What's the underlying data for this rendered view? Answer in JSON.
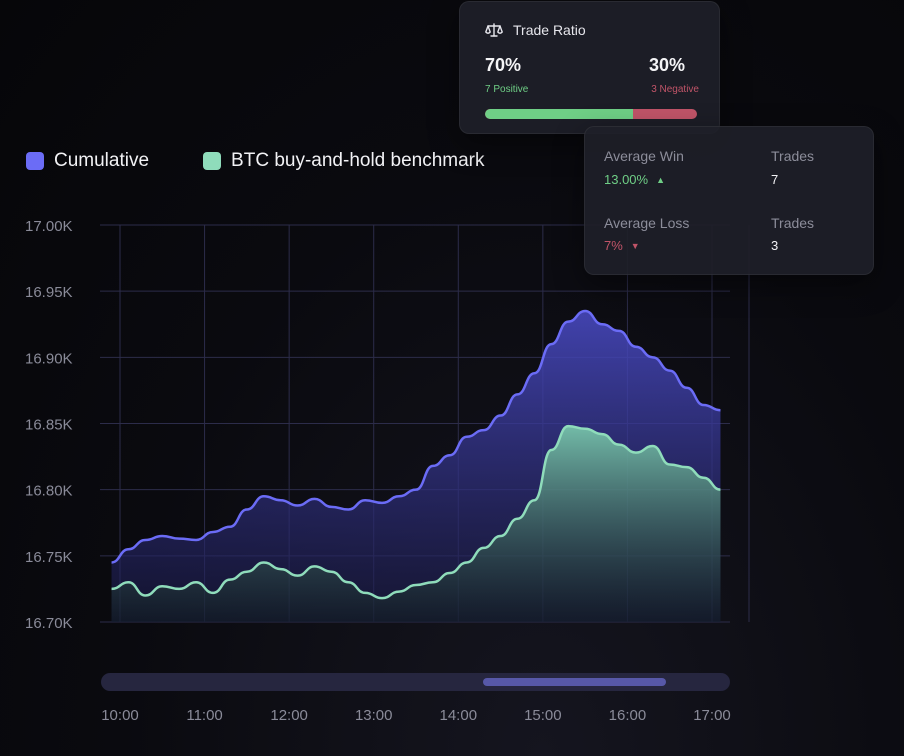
{
  "legend": {
    "cumulative": "Cumulative",
    "benchmark": "BTC buy-and-hold benchmark"
  },
  "trade_ratio": {
    "title": "Trade Ratio",
    "positive_pct": "70%",
    "positive_label": "7 Positive",
    "negative_pct": "30%",
    "negative_label": "3 Negative",
    "positive_fraction": 0.7
  },
  "stats": {
    "avg_win_label": "Average Win",
    "avg_win_value": "13.00%",
    "win_trades_label": "Trades",
    "win_trades_value": "7",
    "avg_loss_label": "Average Loss",
    "avg_loss_value": "7%",
    "loss_trades_label": "Trades",
    "loss_trades_value": "3"
  },
  "colors": {
    "cumulative": "#6b6cf6",
    "benchmark": "#8fdcbb",
    "positive": "#6fcf86",
    "negative": "#c05468"
  },
  "chart_data": {
    "type": "area",
    "ylim": [
      16.7,
      17.0
    ],
    "xlim": [
      10.0,
      17.0
    ],
    "y_ticks": [
      "16.70K",
      "16.75K",
      "16.80K",
      "16.85K",
      "16.90K",
      "16.95K",
      "17.00K"
    ],
    "y_tick_values": [
      16.7,
      16.75,
      16.8,
      16.85,
      16.9,
      16.95,
      17.0
    ],
    "x_ticks": [
      "10:00",
      "11:00",
      "12:00",
      "13:00",
      "14:00",
      "15:00",
      "16:00",
      "17:00"
    ],
    "x_tick_values": [
      10,
      11,
      12,
      13,
      14,
      15,
      16,
      17
    ],
    "grid": true,
    "legend_position": "top-left",
    "series": [
      {
        "name": "Cumulative",
        "x": [
          9.9,
          10.1,
          10.3,
          10.5,
          10.7,
          10.9,
          11.1,
          11.3,
          11.5,
          11.7,
          11.9,
          12.1,
          12.3,
          12.5,
          12.7,
          12.9,
          13.1,
          13.3,
          13.5,
          13.7,
          13.9,
          14.1,
          14.3,
          14.5,
          14.7,
          14.9,
          15.1,
          15.3,
          15.5,
          15.7,
          15.9,
          16.1,
          16.3,
          16.5,
          16.7,
          16.9,
          17.1
        ],
        "values": [
          16.745,
          16.755,
          16.762,
          16.765,
          16.763,
          16.762,
          16.768,
          16.772,
          16.785,
          16.795,
          16.792,
          16.788,
          16.793,
          16.787,
          16.785,
          16.792,
          16.79,
          16.795,
          16.8,
          16.818,
          16.826,
          16.84,
          16.845,
          16.856,
          16.872,
          16.888,
          16.91,
          16.927,
          16.935,
          16.925,
          16.92,
          16.908,
          16.9,
          16.89,
          16.877,
          16.864,
          16.86
        ]
      },
      {
        "name": "BTC buy-and-hold benchmark",
        "x": [
          9.9,
          10.1,
          10.3,
          10.5,
          10.7,
          10.9,
          11.1,
          11.3,
          11.5,
          11.7,
          11.9,
          12.1,
          12.3,
          12.5,
          12.7,
          12.9,
          13.1,
          13.3,
          13.5,
          13.7,
          13.9,
          14.1,
          14.3,
          14.5,
          14.7,
          14.9,
          15.1,
          15.3,
          15.5,
          15.7,
          15.9,
          16.1,
          16.3,
          16.5,
          16.7,
          16.9,
          17.1
        ],
        "values": [
          16.725,
          16.73,
          16.72,
          16.727,
          16.725,
          16.73,
          16.722,
          16.732,
          16.738,
          16.745,
          16.74,
          16.735,
          16.742,
          16.738,
          16.73,
          16.722,
          16.718,
          16.723,
          16.728,
          16.73,
          16.737,
          16.745,
          16.756,
          16.765,
          16.778,
          16.792,
          16.83,
          16.848,
          16.846,
          16.842,
          16.834,
          16.828,
          16.833,
          16.819,
          16.817,
          16.809,
          16.8
        ]
      }
    ]
  }
}
